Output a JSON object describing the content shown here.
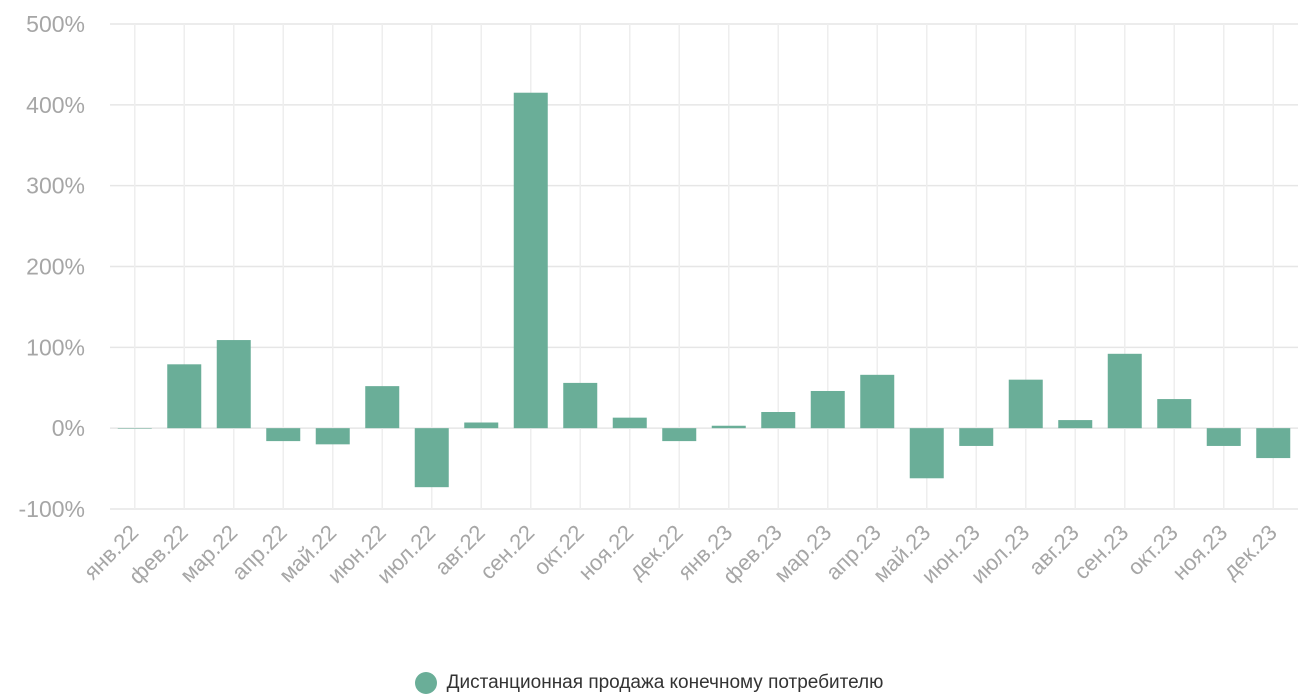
{
  "chart_data": {
    "type": "bar",
    "categories": [
      "янв.22",
      "фев.22",
      "мар.22",
      "апр.22",
      "май.22",
      "июн.22",
      "июл.22",
      "авг.22",
      "сен.22",
      "окт.22",
      "ноя.22",
      "дек.22",
      "янв.23",
      "фев.23",
      "мар.23",
      "апр.23",
      "май.23",
      "июн.23",
      "июл.23",
      "авг.23",
      "сен.23",
      "окт.23",
      "ноя.23",
      "дек.23"
    ],
    "series": [
      {
        "name": "Дистанционная продажа конечному потребителю",
        "values": [
          0,
          79,
          109,
          -16,
          -20,
          52,
          -73,
          7,
          415,
          56,
          13,
          -16,
          3,
          20,
          46,
          66,
          -62,
          -22,
          60,
          10,
          92,
          36,
          -22,
          -37
        ]
      }
    ],
    "y_ticks": [
      "500%",
      "400%",
      "300%",
      "200%",
      "100%",
      "0%",
      "-100%"
    ],
    "ylim": [
      -100,
      500
    ],
    "grid": true,
    "legend_position": "bottom",
    "bar_color": "#6aae98",
    "title": "",
    "xlabel": "",
    "ylabel": ""
  }
}
